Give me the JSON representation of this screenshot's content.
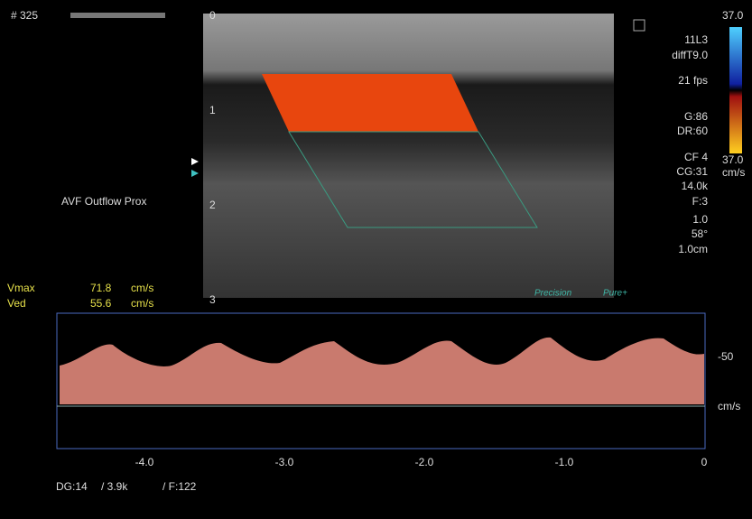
{
  "header": {
    "frame": "# 325"
  },
  "depth_markers": [
    "0",
    "1",
    "2",
    "3"
  ],
  "label": "AVF Outflow Prox",
  "settings": [
    "11L3",
    "diffT9.0",
    "21 fps",
    "G:86",
    "DR:60",
    "CF 4",
    "CG:31",
    "14.0k",
    "F:3",
    "1.0",
    "58°",
    "1.0cm"
  ],
  "color_bar": {
    "top": "37.0",
    "bottom": "37.0",
    "unit": "cm/s"
  },
  "measurements": [
    {
      "name": "Vmax",
      "value": "71.8",
      "unit": "cm/s"
    },
    {
      "name": "Ved",
      "value": "55.6",
      "unit": "cm/s"
    }
  ],
  "modes": [
    "Precision",
    "Pure+"
  ],
  "spectral": {
    "velocity_label": "-50",
    "unit": "cm/s",
    "time_ticks": [
      "-4.0",
      "-3.0",
      "-2.0",
      "-1.0",
      "0"
    ]
  },
  "footer": [
    "DG:14",
    "/ 3.9k",
    "/ F:122"
  ]
}
